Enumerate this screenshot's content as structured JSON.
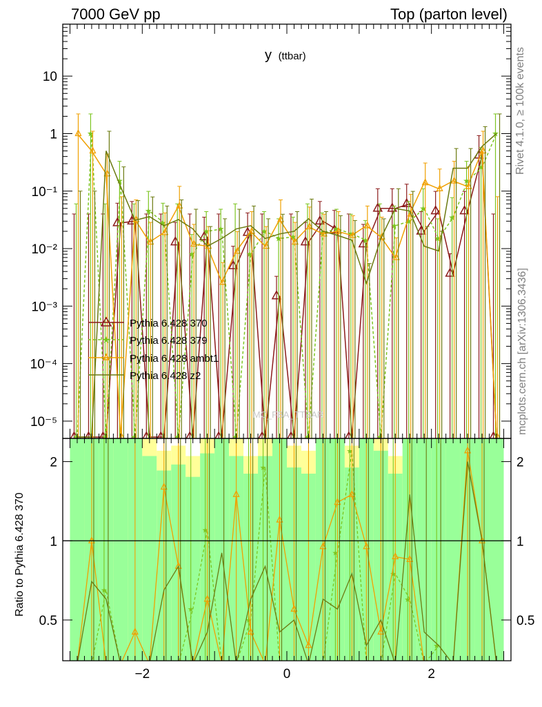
{
  "header": {
    "energy_label": "7000 GeV pp",
    "process_label": "Top (parton level)"
  },
  "side_labels": {
    "rivet": "Rivet 4.1.0, ≥ 100k events",
    "mcplots": "mcplots.cern.ch [arXiv:1306.3436]"
  },
  "colors": {
    "series_370": "#8b1a1a",
    "series_379": "#7cc520",
    "series_ambt1": "#f0a000",
    "series_z2": "#6b7a0f",
    "band_inner": "#99ff99",
    "band_outer": "#ffff99"
  },
  "chart_data": [
    {
      "type": "line",
      "panel": "main",
      "title": "y",
      "title_sub": "(ttbar)",
      "xlabel": "",
      "ylabel": "",
      "xlim": [
        -3.1,
        3.1
      ],
      "ylim": [
        5e-06,
        80
      ],
      "yscale": "log",
      "y_tick_labels": [
        "10⁻⁵",
        "10⁻⁴",
        "10⁻³",
        "10⁻²",
        "10⁻¹",
        "1",
        "10"
      ],
      "y_tick_values": [
        1e-05,
        0.0001,
        0.001,
        0.01,
        0.1,
        1,
        10
      ],
      "x_tick_labels": [
        "−2",
        "0",
        "2"
      ],
      "x_tick_values": [
        -2,
        0,
        2
      ],
      "watermark": "MC_FBA_TTBAR",
      "legend_position": "left",
      "x": [
        -2.9,
        -2.7,
        -2.5,
        -2.3,
        -2.1,
        -1.9,
        -1.7,
        -1.5,
        -1.3,
        -1.1,
        -0.9,
        -0.7,
        -0.5,
        -0.3,
        -0.1,
        0.1,
        0.3,
        0.5,
        0.7,
        0.9,
        1.1,
        1.3,
        1.5,
        1.7,
        1.9,
        2.1,
        2.3,
        2.5,
        2.7,
        2.9
      ],
      "series": [
        {
          "name": "Pythia 6.428 370",
          "marker": "triangle-open",
          "values": [
            0,
            0,
            0,
            0.028,
            0.03,
            0,
            0,
            0.013,
            0,
            0.016,
            0,
            0.005,
            0.019,
            0,
            0.0015,
            0,
            0.013,
            0.03,
            0.021,
            0,
            0.012,
            0.05,
            0.05,
            0.06,
            0.02,
            0.045,
            0.0037,
            0.045,
            0.42,
            0
          ]
        },
        {
          "name": "Pythia 6.428 379",
          "marker": "star",
          "values": [
            0,
            1.0,
            0,
            0.15,
            0,
            0.045,
            0.028,
            0,
            0.008,
            0.02,
            0.022,
            0,
            0.008,
            0.02,
            0.015,
            0.016,
            0,
            0.019,
            0.022,
            0.018,
            0.014,
            0,
            0.025,
            0.03,
            0.05,
            0.015,
            0.035,
            0.15,
            0.26,
            1.0
          ]
        },
        {
          "name": "Pythia 6.428 ambt1",
          "marker": "triangle-small",
          "values": [
            1.0,
            0.5,
            0.2,
            0,
            0.032,
            0.013,
            0.019,
            0.055,
            0.012,
            0.011,
            0.0026,
            0.009,
            0.02,
            0.011,
            0.032,
            0.013,
            0.024,
            0.018,
            0.02,
            0.017,
            0.025,
            0.016,
            0.007,
            0.04,
            0.14,
            0.11,
            0.15,
            0.12,
            0.5,
            0
          ]
        },
        {
          "name": "Pythia 6.428 z2",
          "marker": "line",
          "values": [
            0,
            0,
            0.5,
            0.12,
            0.031,
            0.036,
            0.025,
            0.032,
            0.022,
            0.011,
            0.015,
            0.022,
            0.025,
            0.015,
            0.018,
            0.02,
            0.033,
            0.02,
            0.017,
            0.014,
            0.0025,
            0.015,
            0.05,
            0.045,
            0.011,
            0.0091,
            0.25,
            0.25,
            0.6,
            1.0
          ]
        }
      ]
    },
    {
      "type": "line",
      "panel": "ratio",
      "ylabel": "Ratio to Pythia 6.428 370",
      "xlim": [
        -3.1,
        3.1
      ],
      "ylim": [
        0.35,
        2.45
      ],
      "yscale": "log",
      "y_tick_labels": [
        "0.5",
        "1",
        "2"
      ],
      "y_tick_values": [
        0.5,
        1,
        2
      ],
      "x_tick_labels": [
        "−2",
        "0",
        "2"
      ],
      "x_tick_values": [
        -2,
        0,
        2
      ],
      "reference_line": 1,
      "x": [
        -2.9,
        -2.7,
        -2.5,
        -2.3,
        -2.1,
        -1.9,
        -1.7,
        -1.5,
        -1.3,
        -1.1,
        -0.9,
        -0.7,
        -0.5,
        -0.3,
        -0.1,
        0.1,
        0.3,
        0.5,
        0.7,
        0.9,
        1.1,
        1.3,
        1.5,
        1.7,
        1.9,
        2.1,
        2.3,
        2.5,
        2.7,
        2.9
      ],
      "band_outer_top": [
        2.45,
        2.45,
        2.45,
        2.45,
        2.45,
        2.45,
        2.2,
        2.3,
        2.1,
        2.45,
        2.45,
        2.45,
        2.1,
        2.45,
        2.45,
        2.3,
        2.2,
        2.45,
        2.45,
        2.3,
        2.45,
        2.45,
        2.1,
        2.45,
        2.45,
        2.45,
        2.45,
        2.45,
        2.45,
        2.45
      ],
      "band_inner_top": [
        2.45,
        2.45,
        2.45,
        2.45,
        2.45,
        2.1,
        1.85,
        1.95,
        1.75,
        2.15,
        2.45,
        2.1,
        1.8,
        2.1,
        2.45,
        1.9,
        1.8,
        2.45,
        2.45,
        1.9,
        2.45,
        2.2,
        1.8,
        2.45,
        2.45,
        2.45,
        2.45,
        2.45,
        2.45,
        2.45
      ],
      "band_inner_bottom": [
        0.35,
        0.35,
        0.35,
        0.35,
        0.35,
        0.35,
        0.35,
        0.35,
        0.35,
        0.35,
        0.35,
        0.35,
        0.35,
        0.35,
        0.35,
        0.35,
        0.35,
        0.35,
        0.35,
        0.35,
        0.35,
        0.35,
        0.35,
        0.35,
        0.35,
        0.35,
        0.35,
        0.35,
        0.35,
        0.35
      ],
      "series": [
        {
          "name": "Pythia 6.428 379",
          "values": [
            0,
            0,
            0.65,
            0,
            0,
            0,
            0,
            0,
            0.55,
            1.1,
            0,
            0,
            0.5,
            1.9,
            0,
            0,
            0,
            0,
            0.9,
            2.2,
            0,
            0,
            0.75,
            0.6,
            0,
            0.4,
            0,
            0,
            0,
            0
          ]
        },
        {
          "name": "Pythia 6.428 ambt1",
          "values": [
            0,
            1.0,
            0,
            0,
            0.45,
            0,
            1.6,
            0.8,
            0,
            0.6,
            0,
            1.5,
            0.45,
            0,
            1.2,
            0.55,
            0.4,
            0.95,
            1.4,
            1.5,
            0.95,
            0.45,
            0.87,
            0.85,
            0,
            0,
            0,
            2.2,
            1.0,
            0
          ]
        },
        {
          "name": "Pythia 6.428 z2",
          "values": [
            0,
            0.7,
            0.6,
            0,
            0,
            0,
            0.65,
            0.8,
            0,
            0.45,
            0.9,
            0,
            0.6,
            0.8,
            0.45,
            0.5,
            0,
            0.6,
            0.55,
            0.75,
            0.4,
            0.5,
            0,
            1.5,
            0.45,
            0.4,
            0,
            2.0,
            1.0,
            0
          ]
        }
      ]
    }
  ]
}
